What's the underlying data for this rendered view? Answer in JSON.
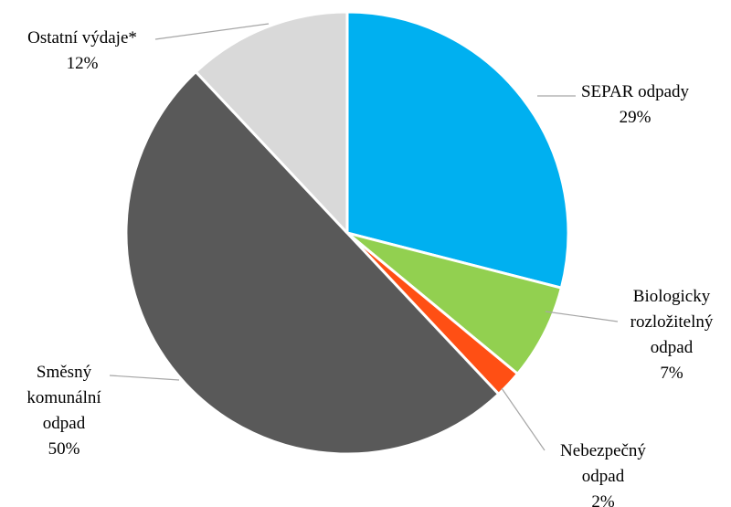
{
  "chart_data": {
    "type": "pie",
    "categories": [
      "SEPAR odpady",
      "Biologicky rozložitelný odpad",
      "Nebezpečný odpad",
      "Směsný komunální odpad",
      "Ostatní výdaje*"
    ],
    "values": [
      29,
      7,
      2,
      50,
      12
    ],
    "value_labels": [
      "29%",
      "7%",
      "2%",
      "50%",
      "12%"
    ],
    "colors": [
      "#00b0f0",
      "#92d050",
      "#ff4f14",
      "#595959",
      "#d9d9d9"
    ]
  }
}
